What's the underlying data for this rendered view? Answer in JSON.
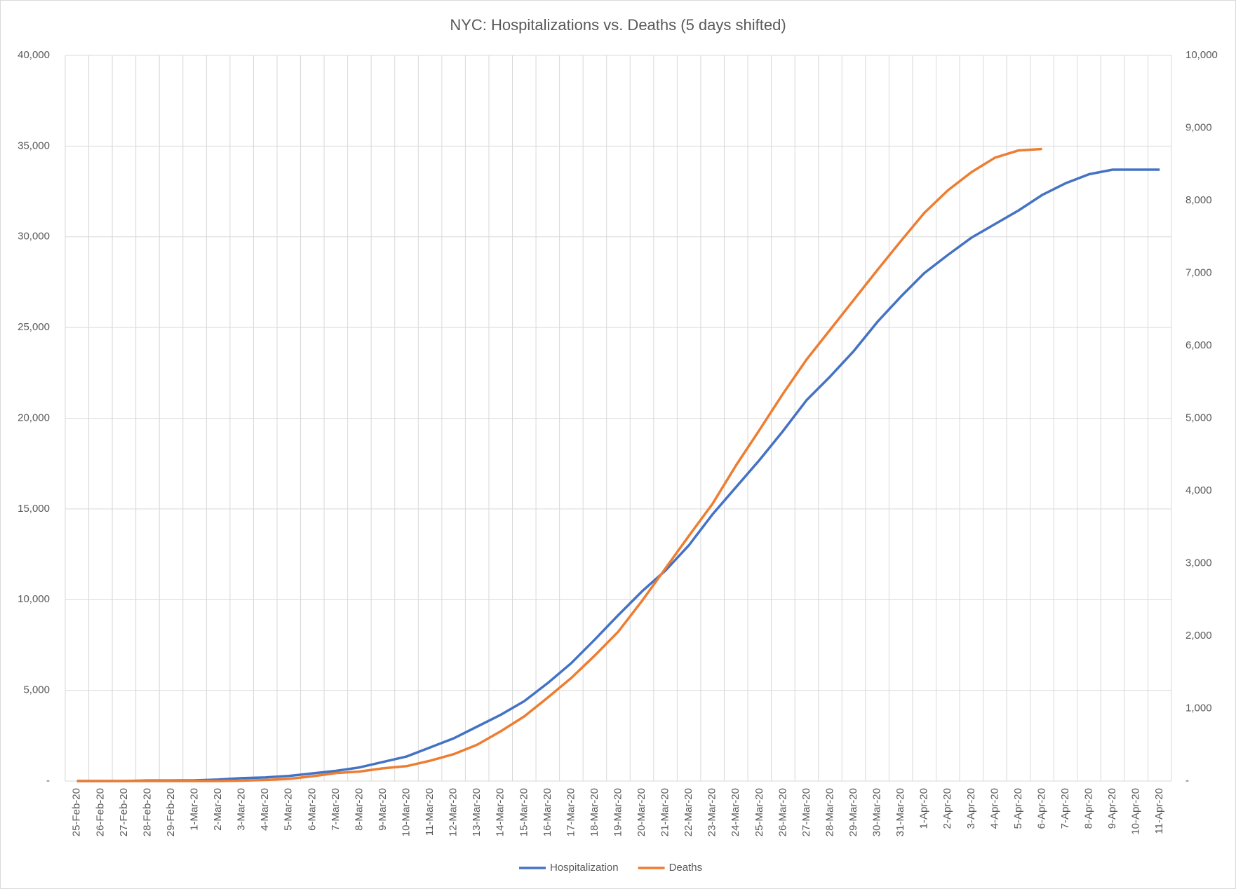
{
  "chart_data": {
    "type": "line",
    "title": "NYC: Hospitalizations vs. Deaths (5 days shifted)",
    "categories": [
      "25-Feb-20",
      "26-Feb-20",
      "27-Feb-20",
      "28-Feb-20",
      "29-Feb-20",
      "1-Mar-20",
      "2-Mar-20",
      "3-Mar-20",
      "4-Mar-20",
      "5-Mar-20",
      "6-Mar-20",
      "7-Mar-20",
      "8-Mar-20",
      "9-Mar-20",
      "10-Mar-20",
      "11-Mar-20",
      "12-Mar-20",
      "13-Mar-20",
      "14-Mar-20",
      "15-Mar-20",
      "16-Mar-20",
      "17-Mar-20",
      "18-Mar-20",
      "19-Mar-20",
      "20-Mar-20",
      "21-Mar-20",
      "22-Mar-20",
      "23-Mar-20",
      "24-Mar-20",
      "25-Mar-20",
      "26-Mar-20",
      "27-Mar-20",
      "28-Mar-20",
      "29-Mar-20",
      "30-Mar-20",
      "31-Mar-20",
      "1-Apr-20",
      "2-Apr-20",
      "3-Apr-20",
      "4-Apr-20",
      "5-Apr-20",
      "6-Apr-20",
      "7-Apr-20",
      "8-Apr-20",
      "9-Apr-20",
      "10-Apr-20",
      "11-Apr-20"
    ],
    "series": [
      {
        "name": "Hospitalization",
        "color": "#4472c4",
        "axis": "y",
        "values": [
          0,
          0,
          0,
          30,
          30,
          40,
          80,
          160,
          200,
          280,
          420,
          560,
          750,
          1050,
          1350,
          1850,
          2350,
          3000,
          3650,
          4400,
          5400,
          6500,
          7800,
          9150,
          10450,
          11600,
          13000,
          14700,
          16200,
          17700,
          19300,
          21000,
          22300,
          23700,
          25300,
          26700,
          28000,
          29000,
          29950,
          30700,
          31450,
          32300,
          32950,
          33450,
          33700,
          33700,
          33700
        ]
      },
      {
        "name": "Deaths",
        "color": "#ed7d31",
        "axis": "y2",
        "values": [
          0,
          0,
          0,
          0,
          0,
          0,
          0,
          5,
          15,
          30,
          65,
          110,
          130,
          175,
          205,
          280,
          370,
          500,
          685,
          890,
          1150,
          1420,
          1730,
          2060,
          2480,
          2930,
          3380,
          3820,
          4350,
          4840,
          5340,
          5810,
          6220,
          6630,
          7040,
          7440,
          7830,
          8140,
          8390,
          8590,
          8690,
          8710,
          null,
          null,
          null,
          null,
          null
        ]
      }
    ],
    "ylim": [
      0,
      40000
    ],
    "yticks": [
      {
        "value": 0,
        "label": "-"
      },
      {
        "value": 5000,
        "label": "5,000"
      },
      {
        "value": 10000,
        "label": "10,000"
      },
      {
        "value": 15000,
        "label": "15,000"
      },
      {
        "value": 20000,
        "label": "20,000"
      },
      {
        "value": 25000,
        "label": "25,000"
      },
      {
        "value": 30000,
        "label": "30,000"
      },
      {
        "value": 35000,
        "label": "35,000"
      },
      {
        "value": 40000,
        "label": "40,000"
      }
    ],
    "y2lim": [
      0,
      10000
    ],
    "y2ticks": [
      {
        "value": 0,
        "label": "-"
      },
      {
        "value": 1000,
        "label": "1,000"
      },
      {
        "value": 2000,
        "label": "2,000"
      },
      {
        "value": 3000,
        "label": "3,000"
      },
      {
        "value": 4000,
        "label": "4,000"
      },
      {
        "value": 5000,
        "label": "5,000"
      },
      {
        "value": 6000,
        "label": "6,000"
      },
      {
        "value": 7000,
        "label": "7,000"
      },
      {
        "value": 8000,
        "label": "8,000"
      },
      {
        "value": 9000,
        "label": "9,000"
      },
      {
        "value": 10000,
        "label": "10,000"
      }
    ],
    "grid": true,
    "legend": "bottom"
  }
}
